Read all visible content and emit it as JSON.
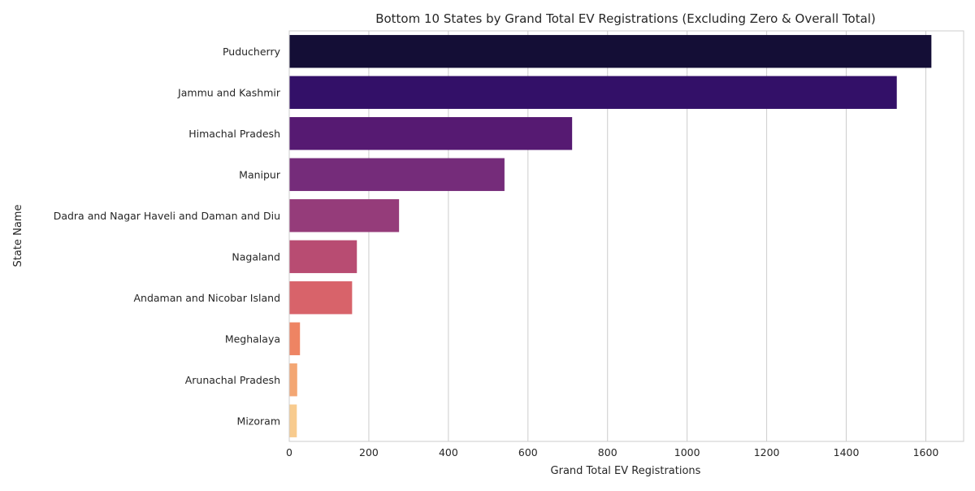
{
  "chart_data": {
    "type": "bar",
    "orientation": "horizontal",
    "title": "Bottom 10 States by Grand Total EV Registrations (Excluding Zero & Overall Total)",
    "xlabel": "Grand Total EV Registrations",
    "ylabel": "State Name",
    "categories": [
      "Puducherry",
      "Jammu and Kashmir",
      "Himachal Pradesh",
      "Manipur",
      "Dadra and Nagar Haveli and Daman and Diu",
      "Nagaland",
      "Andaman and Nicobar Island",
      "Meghalaya",
      "Arunachal Pradesh",
      "Mizoram"
    ],
    "values": [
      1614,
      1527,
      711,
      541,
      276,
      170,
      158,
      27,
      20,
      19
    ],
    "colors": [
      "#140e36",
      "#331068",
      "#561a72",
      "#752c7a",
      "#953c7a",
      "#b84c72",
      "#d8636a",
      "#ee8463",
      "#f3a673",
      "#f8cb8e"
    ],
    "xlim": [
      0,
      1695
    ],
    "xticks": [
      0,
      200,
      400,
      600,
      800,
      1000,
      1200,
      1400,
      1600
    ],
    "grid": "vertical"
  }
}
